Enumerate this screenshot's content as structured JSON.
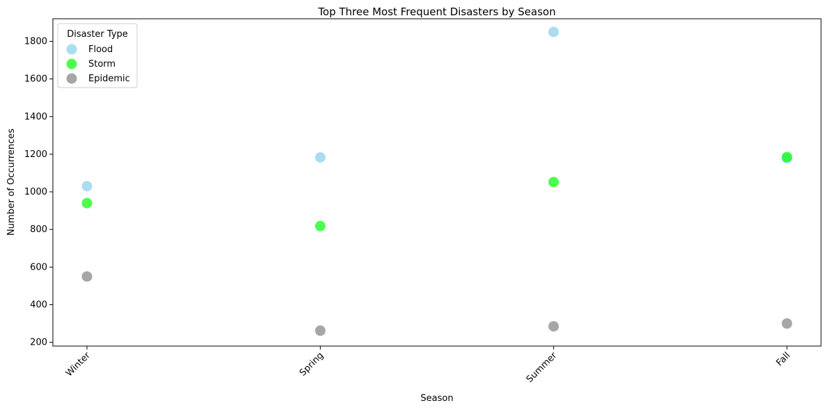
{
  "chart_data": {
    "type": "scatter",
    "title": "Top Three Most Frequent Disasters by Season",
    "xlabel": "Season",
    "ylabel": "Number of Occurrences",
    "categories": [
      "Winter",
      "Spring",
      "Summer",
      "Fall"
    ],
    "ylim": [
      180,
      1920
    ],
    "yticks": [
      200,
      400,
      600,
      800,
      1000,
      1200,
      1400,
      1600,
      1800
    ],
    "grid": false,
    "legend": {
      "title": "Disaster Type",
      "placement": "top-left"
    },
    "series": [
      {
        "name": "Flood",
        "color": "#87ceeb",
        "values": [
          1030,
          1183,
          1850,
          1178
        ]
      },
      {
        "name": "Storm",
        "color": "#00ff00",
        "values": [
          940,
          818,
          1052,
          1185
        ]
      },
      {
        "name": "Epidemic",
        "color": "#808080",
        "values": [
          550,
          262,
          285,
          300
        ]
      }
    ]
  }
}
